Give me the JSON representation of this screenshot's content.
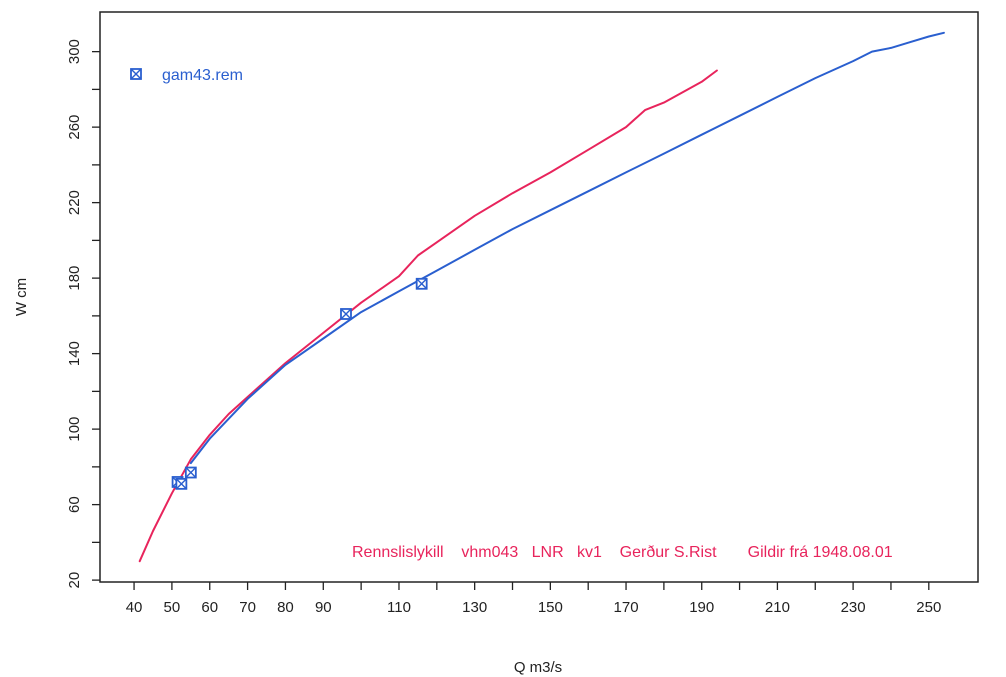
{
  "chart_data": {
    "type": "line",
    "title": "",
    "xlabel": "Q m3/s",
    "ylabel": "W cm",
    "xlim": [
      31,
      263
    ],
    "ylim": [
      19,
      321
    ],
    "xticks": [
      40,
      50,
      60,
      70,
      80,
      90,
      110,
      130,
      150,
      170,
      190,
      210,
      230,
      250
    ],
    "xminor": [
      100,
      120,
      140,
      160,
      180,
      200,
      220,
      240
    ],
    "yticks": [
      20,
      60,
      100,
      140,
      180,
      220,
      260,
      300
    ],
    "yminor": [
      40,
      80,
      120,
      160,
      200,
      240,
      280
    ],
    "grid": false,
    "legend_position": "top-left",
    "colors": {
      "curve_a": "#e8245c",
      "curve_b": "#2a5fcf",
      "axis": "#222222"
    },
    "series": [
      {
        "name": "",
        "kind": "line",
        "color": "#e8245c",
        "x": [
          41.5,
          45,
          50,
          55,
          60,
          65,
          70,
          80,
          90,
          100,
          110,
          115,
          120,
          130,
          140,
          150,
          160,
          170,
          175,
          180,
          190,
          194
        ],
        "y": [
          30,
          46,
          66,
          84,
          97,
          108,
          117,
          135,
          151,
          167,
          181,
          192,
          199,
          213,
          225,
          236,
          248,
          260,
          269,
          273,
          284,
          290
        ]
      },
      {
        "name": "",
        "kind": "line",
        "color": "#2a5fcf",
        "x": [
          55,
          60,
          70,
          80,
          90,
          100,
          110,
          120,
          130,
          140,
          150,
          160,
          170,
          180,
          190,
          200,
          210,
          220,
          230,
          235,
          240,
          245,
          250,
          254
        ],
        "y": [
          82,
          95,
          116,
          134,
          148,
          162,
          173,
          184,
          195,
          206,
          216,
          226,
          236,
          246,
          256,
          266,
          276,
          286,
          295,
          300,
          302,
          305,
          308,
          310
        ]
      },
      {
        "name": "gam43.rem",
        "kind": "scatter",
        "color": "#2a5fcf",
        "x": [
          51.5,
          52.5,
          55,
          96,
          116
        ],
        "y": [
          72,
          71,
          77,
          161,
          177
        ]
      }
    ],
    "annotation": "Rennslislykill    vhm043   LNR   kv1    Gerður S.Rist       Gildir frá 1948.08.01"
  }
}
